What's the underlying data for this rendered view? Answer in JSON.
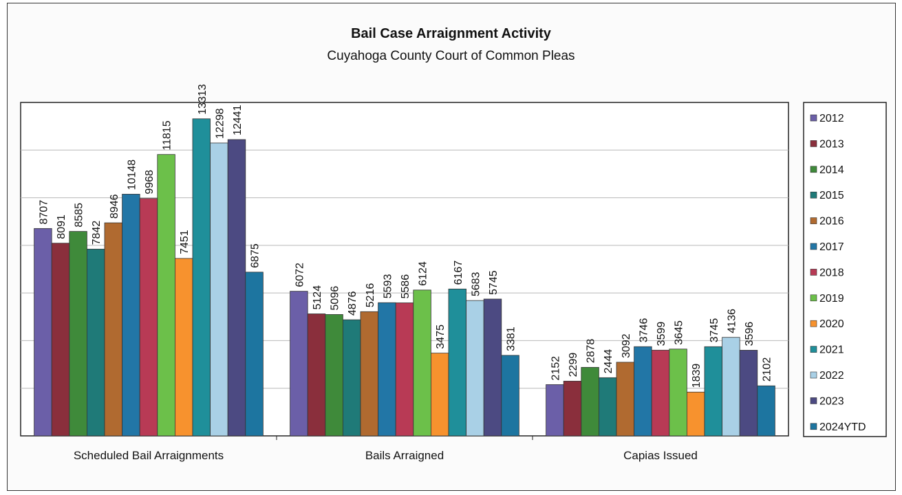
{
  "chart_data": {
    "type": "bar",
    "title": "Bail Case  Arraignment Activity",
    "subtitle": "Cuyahoga County Court of Common Pleas",
    "categories": [
      "Scheduled Bail Arraignments",
      "Bails Arraigned",
      "Capias Issued"
    ],
    "ylim": [
      0,
      14000
    ],
    "grid": true,
    "legend_position": "right",
    "series": [
      {
        "name": "2012",
        "color": "#6b5fa8",
        "values": [
          8707,
          6072,
          2152
        ]
      },
      {
        "name": "2013",
        "color": "#8a2f3c",
        "values": [
          8091,
          5124,
          2299
        ]
      },
      {
        "name": "2014",
        "color": "#3f8a3a",
        "values": [
          8585,
          5096,
          2878
        ]
      },
      {
        "name": "2015",
        "color": "#1f7a78",
        "values": [
          7842,
          4876,
          2444
        ]
      },
      {
        "name": "2016",
        "color": "#b06a30",
        "values": [
          8946,
          5216,
          3092
        ]
      },
      {
        "name": "2017",
        "color": "#2276a6",
        "values": [
          10148,
          5593,
          3746
        ]
      },
      {
        "name": "2018",
        "color": "#b83a55",
        "values": [
          9968,
          5586,
          3599
        ]
      },
      {
        "name": "2019",
        "color": "#6cc04a",
        "values": [
          11815,
          6124,
          3645
        ]
      },
      {
        "name": "2020",
        "color": "#f7922e",
        "values": [
          7451,
          3475,
          1839
        ]
      },
      {
        "name": "2021",
        "color": "#1f8f9a",
        "values": [
          13313,
          6167,
          3745
        ]
      },
      {
        "name": "2022",
        "color": "#a9d0e6",
        "values": [
          12298,
          5683,
          4136
        ]
      },
      {
        "name": "2023",
        "color": "#4c4a82",
        "values": [
          12441,
          5745,
          3596
        ]
      },
      {
        "name": "2024YTD",
        "color": "#1d75a0",
        "values": [
          6875,
          3381,
          2102
        ]
      }
    ]
  }
}
